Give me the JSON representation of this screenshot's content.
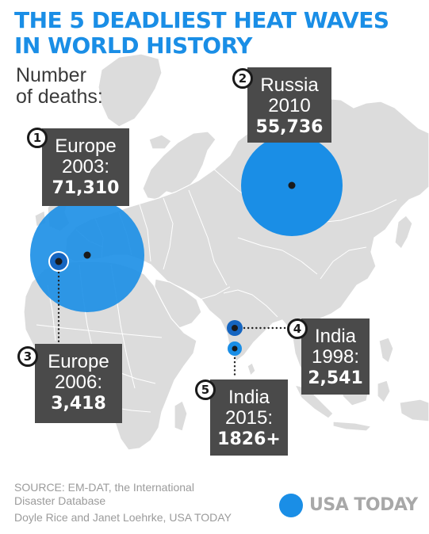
{
  "title": {
    "line1": "THE 5 DEADLIEST HEAT WAVES",
    "line2": "IN WORLD HISTORY"
  },
  "subtitle": {
    "line1": "Number",
    "line2": "of deaths:"
  },
  "heat_waves": [
    {
      "rank": "1",
      "place": "Europe",
      "year": "2003:",
      "deaths": "71,310",
      "deaths_value": 71310
    },
    {
      "rank": "2",
      "place": "Russia",
      "year": "2010",
      "deaths": "55,736",
      "deaths_value": 55736
    },
    {
      "rank": "3",
      "place": "Europe",
      "year": "2006:",
      "deaths": "3,418",
      "deaths_value": 3418
    },
    {
      "rank": "4",
      "place": "India",
      "year": "1998:",
      "deaths": "2,541",
      "deaths_value": 2541
    },
    {
      "rank": "5",
      "place": "India",
      "year": "2015:",
      "deaths": "1826+",
      "deaths_value": 1826
    }
  ],
  "footer": {
    "source_line1": "SOURCE: EM-DAT, the International",
    "source_line2": "Disaster Database",
    "credit": "Doyle Rice and Janet Loehrke, USA TODAY"
  },
  "brand": {
    "name": "USA TODAY"
  },
  "colors": {
    "title": "#1a8ee6",
    "bubble": "#1a8ee6",
    "bubble_small": "#1565c0",
    "land": "#dcdcdc",
    "border": "#ffffff",
    "label_box": "#4a4a4a",
    "leader_line": "#222222"
  }
}
